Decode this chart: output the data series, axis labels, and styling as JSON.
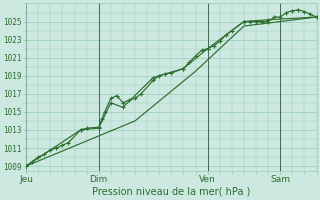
{
  "title": "Pression niveau de la mer( hPa )",
  "bg_color": "#cce8e0",
  "grid_color": "#99ccbb",
  "line_color": "#2d6e2d",
  "ylim": [
    1008.5,
    1027.0
  ],
  "yticks": [
    1009,
    1011,
    1013,
    1015,
    1017,
    1019,
    1021,
    1023,
    1025
  ],
  "xlim": [
    0,
    96
  ],
  "day_ticks": [
    0,
    24,
    60,
    84
  ],
  "day_labels": [
    "Jeu",
    "Dim",
    "Ven",
    "Sam"
  ],
  "series1": [
    [
      0,
      1009.0
    ],
    [
      2,
      1009.5
    ],
    [
      4,
      1010.0
    ],
    [
      6,
      1010.3
    ],
    [
      8,
      1010.8
    ],
    [
      10,
      1011.0
    ],
    [
      12,
      1011.3
    ],
    [
      14,
      1011.6
    ],
    [
      18,
      1013.0
    ],
    [
      20,
      1013.2
    ],
    [
      24,
      1013.3
    ],
    [
      25,
      1014.2
    ],
    [
      26,
      1015.0
    ],
    [
      28,
      1016.5
    ],
    [
      30,
      1016.8
    ],
    [
      32,
      1016.0
    ],
    [
      34,
      1016.3
    ],
    [
      36,
      1016.5
    ],
    [
      38,
      1017.0
    ],
    [
      42,
      1018.5
    ],
    [
      44,
      1019.0
    ],
    [
      46,
      1019.2
    ],
    [
      48,
      1019.3
    ],
    [
      52,
      1019.8
    ],
    [
      54,
      1020.5
    ],
    [
      56,
      1021.2
    ],
    [
      58,
      1021.8
    ],
    [
      60,
      1022.0
    ],
    [
      62,
      1022.3
    ],
    [
      64,
      1022.8
    ],
    [
      66,
      1023.5
    ],
    [
      68,
      1024.0
    ],
    [
      72,
      1025.0
    ],
    [
      74,
      1025.0
    ],
    [
      76,
      1025.0
    ],
    [
      78,
      1025.0
    ],
    [
      80,
      1025.0
    ],
    [
      82,
      1025.5
    ],
    [
      84,
      1025.5
    ],
    [
      86,
      1026.0
    ],
    [
      88,
      1026.2
    ],
    [
      90,
      1026.3
    ],
    [
      92,
      1026.1
    ],
    [
      94,
      1025.8
    ],
    [
      96,
      1025.5
    ]
  ],
  "series2": [
    [
      0,
      1009.0
    ],
    [
      18,
      1013.0
    ],
    [
      24,
      1013.2
    ],
    [
      28,
      1016.0
    ],
    [
      32,
      1015.5
    ],
    [
      42,
      1018.8
    ],
    [
      52,
      1019.8
    ],
    [
      60,
      1022.0
    ],
    [
      72,
      1025.0
    ],
    [
      80,
      1025.2
    ],
    [
      96,
      1025.5
    ]
  ],
  "series3": [
    [
      0,
      1009.0
    ],
    [
      36,
      1014.0
    ],
    [
      56,
      1019.5
    ],
    [
      72,
      1024.5
    ],
    [
      96,
      1025.5
    ]
  ]
}
